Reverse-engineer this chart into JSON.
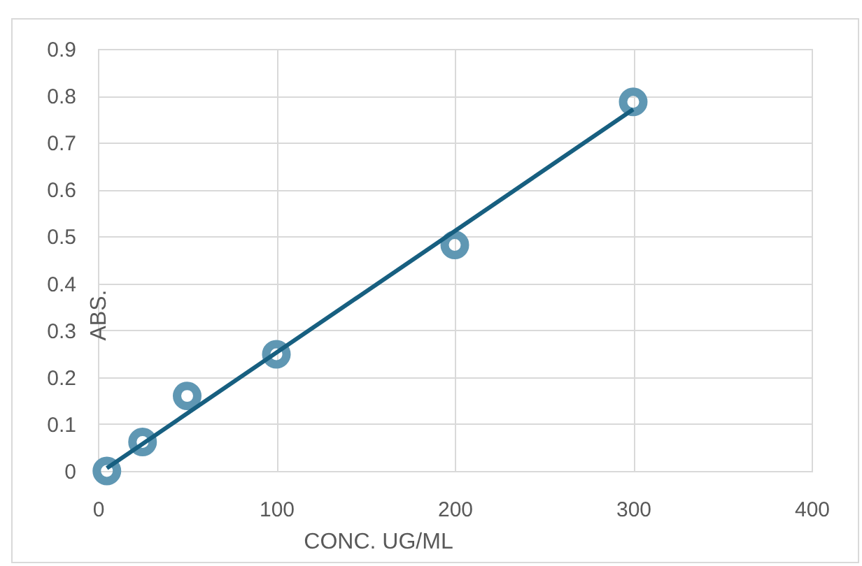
{
  "chart_data": {
    "type": "scatter",
    "xlabel": "CONC. UG/ML",
    "ylabel": "ABS.",
    "x": [
      5,
      25,
      50,
      100,
      200,
      300
    ],
    "series": [
      {
        "color": "#5f97b3",
        "marker": "circle",
        "values": [
          0,
          0.062,
          0.16,
          0.249,
          0.482,
          0.787
        ]
      },
      {
        "type": "line",
        "color": "#175f80",
        "marker": "none",
        "x": [
          5,
          300
        ],
        "values": [
          0.006,
          0.771
        ]
      }
    ],
    "xlim": [
      0,
      400
    ],
    "xticks": [
      0,
      100,
      200,
      300,
      400
    ],
    "ylim": [
      0,
      0.9
    ],
    "yticks": [
      0,
      0.1,
      0.2,
      0.3,
      0.4,
      0.5,
      0.6,
      0.7,
      0.8,
      0.9
    ],
    "grid": true
  }
}
